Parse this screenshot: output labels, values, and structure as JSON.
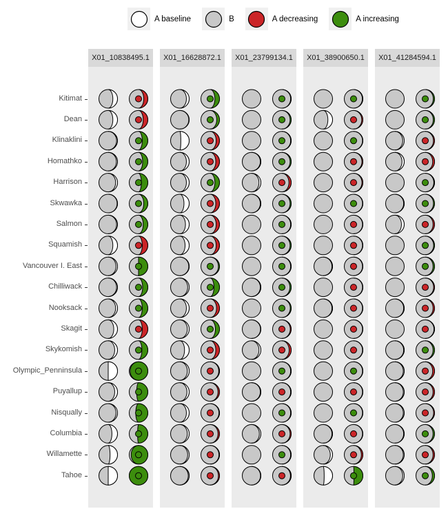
{
  "legend": {
    "items": [
      {
        "label": "A baseline",
        "fill": "#FFFFFF"
      },
      {
        "label": "B",
        "fill": "#C8C8C8"
      },
      {
        "label": "A decreasing",
        "fill": "#CB2528"
      },
      {
        "label": "A increasing",
        "fill": "#3C8D0D"
      }
    ]
  },
  "colors": {
    "baseline_white": "#FFFFFF",
    "b_gray": "#C8C8C8",
    "decreasing_red": "#CB2528",
    "increasing_green": "#3C8D0D",
    "panel_bg": "#EBEBEB",
    "strip_bg": "#D9D9D9",
    "legend_key_bg": "#F0F0F0",
    "outline": "#000000"
  },
  "chart_data": {
    "type": "table",
    "glyph": "moon-pair",
    "glyph_encoding": {
      "left_circle": "moon chart: white fraction = A baseline, gray = B",
      "right_circle": "moon chart: colored fraction = A after change (red = A decreasing, green = A increasing), center dot colored by direction"
    },
    "columns": [
      "X01_10838495.1",
      "X01_16628872.1",
      "X01_23799134.1",
      "X01_38900650.1",
      "X01_41284594.1"
    ],
    "rows": [
      {
        "label": "Kitimat",
        "cells": [
          {
            "b": 0.25,
            "dir": "dec",
            "c": 0.22
          },
          {
            "b": 0.15,
            "dir": "inc",
            "c": 0.25
          },
          {
            "b": 0.0,
            "dir": "inc",
            "c": 0.03
          },
          {
            "b": 0.0,
            "dir": "inc",
            "c": 0.03
          },
          {
            "b": 0.0,
            "dir": "inc",
            "c": 0.07
          }
        ]
      },
      {
        "label": "Dean",
        "cells": [
          {
            "b": 0.25,
            "dir": "dec",
            "c": 0.25
          },
          {
            "b": 0.02,
            "dir": "inc",
            "c": 0.15
          },
          {
            "b": 0.0,
            "dir": "inc",
            "c": 0.06
          },
          {
            "b": 0.25,
            "dir": "dec",
            "c": 0.06
          },
          {
            "b": 0.0,
            "dir": "inc",
            "c": 0.07
          }
        ]
      },
      {
        "label": "Klinaklini",
        "cells": [
          {
            "b": 0.05,
            "dir": "inc",
            "c": 0.3
          },
          {
            "b": 0.45,
            "dir": "dec",
            "c": 0.18
          },
          {
            "b": 0.0,
            "dir": "inc",
            "c": 0.03
          },
          {
            "b": 0.0,
            "dir": "inc",
            "c": 0.02
          },
          {
            "b": 0.08,
            "dir": "dec",
            "c": 0.06
          }
        ]
      },
      {
        "label": "Homathko",
        "cells": [
          {
            "b": 0.06,
            "dir": "inc",
            "c": 0.28
          },
          {
            "b": 0.15,
            "dir": "dec",
            "c": 0.2
          },
          {
            "b": 0.03,
            "dir": "inc",
            "c": 0.06
          },
          {
            "b": 0.0,
            "dir": "dec",
            "c": 0.05
          },
          {
            "b": 0.12,
            "dir": "dec",
            "c": 0.1
          }
        ]
      },
      {
        "label": "Harrison",
        "cells": [
          {
            "b": 0.1,
            "dir": "inc",
            "c": 0.35
          },
          {
            "b": 0.15,
            "dir": "inc",
            "c": 0.25
          },
          {
            "b": 0.1,
            "dir": "dec",
            "c": 0.12
          },
          {
            "b": 0.0,
            "dir": "dec",
            "c": 0.05
          },
          {
            "b": 0.0,
            "dir": "inc",
            "c": 0.04
          }
        ]
      },
      {
        "label": "Skwawka",
        "cells": [
          {
            "b": 0.02,
            "dir": "inc",
            "c": 0.22
          },
          {
            "b": 0.28,
            "dir": "dec",
            "c": 0.2
          },
          {
            "b": 0.03,
            "dir": "inc",
            "c": 0.06
          },
          {
            "b": 0.0,
            "dir": "inc",
            "c": 0.02
          },
          {
            "b": 0.03,
            "dir": "inc",
            "c": 0.06
          }
        ]
      },
      {
        "label": "Salmon",
        "cells": [
          {
            "b": 0.05,
            "dir": "inc",
            "c": 0.25
          },
          {
            "b": 0.2,
            "dir": "dec",
            "c": 0.18
          },
          {
            "b": 0.0,
            "dir": "inc",
            "c": 0.03
          },
          {
            "b": 0.0,
            "dir": "dec",
            "c": 0.02
          },
          {
            "b": 0.15,
            "dir": "dec",
            "c": 0.08
          }
        ]
      },
      {
        "label": "Squamish",
        "cells": [
          {
            "b": 0.25,
            "dir": "dec",
            "c": 0.3
          },
          {
            "b": 0.22,
            "dir": "dec",
            "c": 0.18
          },
          {
            "b": 0.0,
            "dir": "inc",
            "c": 0.06
          },
          {
            "b": 0.0,
            "dir": "dec",
            "c": 0.02
          },
          {
            "b": 0.0,
            "dir": "inc",
            "c": 0.05
          }
        ]
      },
      {
        "label": "Vancouver I. East",
        "cells": [
          {
            "b": 0.08,
            "dir": "inc",
            "c": 0.5
          },
          {
            "b": 0.02,
            "dir": "inc",
            "c": 0.06
          },
          {
            "b": 0.0,
            "dir": "inc",
            "c": 0.03
          },
          {
            "b": 0.03,
            "dir": "dec",
            "c": 0.02
          },
          {
            "b": 0.0,
            "dir": "inc",
            "c": 0.08
          }
        ]
      },
      {
        "label": "Chilliwack",
        "cells": [
          {
            "b": 0.05,
            "dir": "inc",
            "c": 0.28
          },
          {
            "b": 0.08,
            "dir": "inc",
            "c": 0.3
          },
          {
            "b": 0.03,
            "dir": "inc",
            "c": 0.07
          },
          {
            "b": 0.0,
            "dir": "dec",
            "c": 0.02
          },
          {
            "b": 0.0,
            "dir": "dec",
            "c": 0.05
          }
        ]
      },
      {
        "label": "Nooksack",
        "cells": [
          {
            "b": 0.1,
            "dir": "inc",
            "c": 0.3
          },
          {
            "b": 0.15,
            "dir": "dec",
            "c": 0.16
          },
          {
            "b": 0.0,
            "dir": "inc",
            "c": 0.05
          },
          {
            "b": 0.03,
            "dir": "dec",
            "c": 0.02
          },
          {
            "b": 0.03,
            "dir": "dec",
            "c": 0.08
          }
        ]
      },
      {
        "label": "Skagit",
        "cells": [
          {
            "b": 0.2,
            "dir": "dec",
            "c": 0.3
          },
          {
            "b": 0.1,
            "dir": "inc",
            "c": 0.22
          },
          {
            "b": 0.02,
            "dir": "dec",
            "c": 0.05
          },
          {
            "b": 0.0,
            "dir": "dec",
            "c": 0.02
          },
          {
            "b": 0.0,
            "dir": "dec",
            "c": 0.03
          }
        ]
      },
      {
        "label": "Skykomish",
        "cells": [
          {
            "b": 0.15,
            "dir": "inc",
            "c": 0.32
          },
          {
            "b": 0.25,
            "dir": "dec",
            "c": 0.2
          },
          {
            "b": 0.1,
            "dir": "dec",
            "c": 0.11
          },
          {
            "b": 0.0,
            "dir": "dec",
            "c": 0.02
          },
          {
            "b": 0.03,
            "dir": "inc",
            "c": 0.08
          }
        ]
      },
      {
        "label": "Olympic_Penninsula",
        "cells": [
          {
            "b": 0.5,
            "dir": "inc",
            "c": 0.95
          },
          {
            "b": 0.1,
            "dir": "dec",
            "c": 0.04
          },
          {
            "b": 0.0,
            "dir": "inc",
            "c": 0.03
          },
          {
            "b": 0.0,
            "dir": "inc",
            "c": 0.02
          },
          {
            "b": 0.05,
            "dir": "dec",
            "c": 0.1
          }
        ]
      },
      {
        "label": "Puyallup",
        "cells": [
          {
            "b": 0.15,
            "dir": "inc",
            "c": 0.6
          },
          {
            "b": 0.12,
            "dir": "dec",
            "c": 0.08
          },
          {
            "b": 0.03,
            "dir": "dec",
            "c": 0.03
          },
          {
            "b": 0.0,
            "dir": "dec",
            "c": 0.02
          },
          {
            "b": 0.05,
            "dir": "dec",
            "c": 0.08
          }
        ]
      },
      {
        "label": "Nisqually",
        "cells": [
          {
            "b": 0.08,
            "dir": "inc",
            "c": 0.65
          },
          {
            "b": 0.15,
            "dir": "dec",
            "c": 0.03
          },
          {
            "b": 0.0,
            "dir": "inc",
            "c": 0.03
          },
          {
            "b": 0.0,
            "dir": "inc",
            "c": 0.02
          },
          {
            "b": 0.05,
            "dir": "dec",
            "c": 0.05
          }
        ]
      },
      {
        "label": "Columbia",
        "cells": [
          {
            "b": 0.3,
            "dir": "inc",
            "c": 0.55
          },
          {
            "b": 0.1,
            "dir": "dec",
            "c": 0.08
          },
          {
            "b": 0.08,
            "dir": "dec",
            "c": 0.06
          },
          {
            "b": 0.03,
            "dir": "dec",
            "c": 0.02
          },
          {
            "b": 0.03,
            "dir": "inc",
            "c": 0.08
          }
        ]
      },
      {
        "label": "Willamette",
        "cells": [
          {
            "b": 0.4,
            "dir": "inc",
            "c": 0.9
          },
          {
            "b": 0.08,
            "dir": "dec",
            "c": 0.03
          },
          {
            "b": 0.0,
            "dir": "inc",
            "c": 0.03
          },
          {
            "b": 0.12,
            "dir": "dec",
            "c": 0.08
          },
          {
            "b": 0.05,
            "dir": "dec",
            "c": 0.08
          }
        ]
      },
      {
        "label": "Tahoe",
        "cells": [
          {
            "b": 0.5,
            "dir": "inc",
            "c": 1.0
          },
          {
            "b": 0.05,
            "dir": "dec",
            "c": 0.06
          },
          {
            "b": 0.02,
            "dir": "dec",
            "c": 0.04
          },
          {
            "b": 0.45,
            "dir": "inc",
            "c": 0.48
          },
          {
            "b": 0.08,
            "dir": "inc",
            "c": 0.12
          }
        ]
      }
    ]
  }
}
